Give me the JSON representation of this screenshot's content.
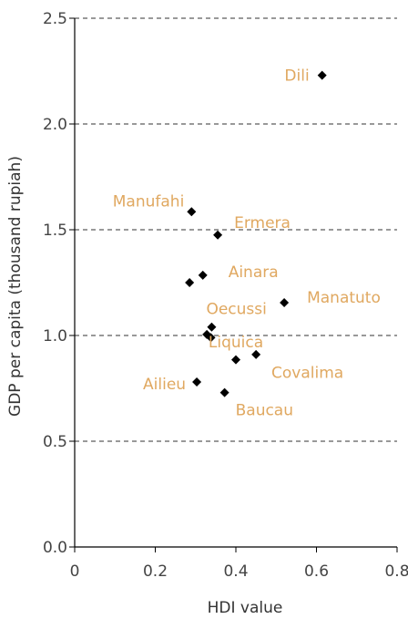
{
  "chart_data": {
    "type": "scatter",
    "title": "",
    "xlabel": "HDI value",
    "ylabel": "GDP per capita (thousand rupiah)",
    "xlim": [
      0,
      0.8
    ],
    "ylim": [
      0,
      2.5
    ],
    "xticks": [
      0,
      0.2,
      0.4,
      0.6,
      0.8
    ],
    "xtick_labels": [
      "0",
      "0.2",
      "0.4",
      "0.6",
      "0.8"
    ],
    "yticks": [
      0,
      0.5,
      1.0,
      1.5,
      2.0,
      2.5
    ],
    "ytick_labels": [
      "0.0",
      "0.5",
      "1.0",
      "1.5",
      "2.0",
      "2.5"
    ],
    "grid": "horizontal-dashed",
    "marker_color": "#000000",
    "label_color": "#e0a860",
    "points": [
      {
        "x": 0.614,
        "y": 2.23,
        "label": "Dili"
      },
      {
        "x": 0.29,
        "y": 1.585,
        "label": "Manufahi"
      },
      {
        "x": 0.355,
        "y": 1.475,
        "label": "Ermera"
      },
      {
        "x": 0.318,
        "y": 1.285,
        "label": "Ainara"
      },
      {
        "x": 0.285,
        "y": 1.25,
        "label": ""
      },
      {
        "x": 0.52,
        "y": 1.155,
        "label": "Manatuto"
      },
      {
        "x": 0.34,
        "y": 1.04,
        "label": "Oecussi"
      },
      {
        "x": 0.328,
        "y": 1.005,
        "label": ""
      },
      {
        "x": 0.338,
        "y": 0.99,
        "label": ""
      },
      {
        "x": 0.45,
        "y": 0.91,
        "label": "Liquica"
      },
      {
        "x": 0.4,
        "y": 0.885,
        "label": "Covalima"
      },
      {
        "x": 0.303,
        "y": 0.78,
        "label": "Ailieu"
      },
      {
        "x": 0.372,
        "y": 0.73,
        "label": "Baucau"
      }
    ]
  }
}
